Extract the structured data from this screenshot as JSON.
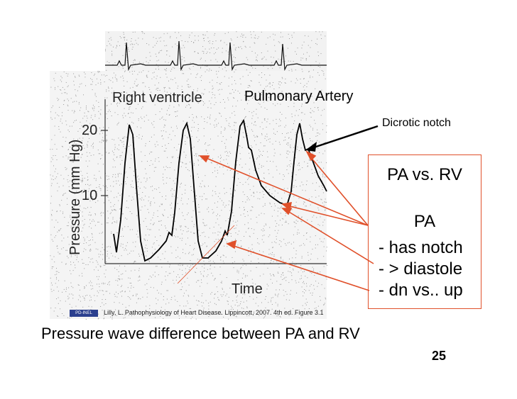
{
  "figure": {
    "title_rv": "Right ventricle",
    "y_axis_label": "Pressure (mm Hg)",
    "y_tick_20": "20",
    "y_tick_10": "10",
    "x_axis_label": "Time",
    "pa_label": "Pulmonary Artery",
    "notch_label": "Dicrotic notch"
  },
  "callout": {
    "title": "PA vs. RV",
    "subtitle": "PA",
    "items": [
      "- has notch",
      "- > diastole",
      "- dn vs.. up"
    ]
  },
  "citation": {
    "badge": "PD-INEL",
    "text": "Lilly, L. Pathophysiology of Heart Disease. Lippincott, 2007. 4th ed. Figure 3.1"
  },
  "caption": "Pressure wave difference between PA and RV",
  "slide_number": "25",
  "colors": {
    "arrow": "#e0502a",
    "box_border": "#e0502a",
    "trace": "#000000",
    "noise": "#9a9a9a"
  }
}
